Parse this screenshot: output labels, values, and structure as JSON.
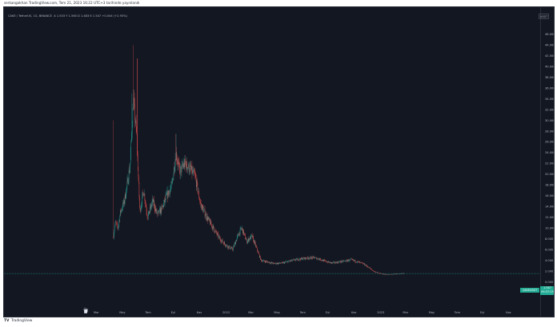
{
  "caption": "serkangokhan TradingView.com, Tem 21, 2023 16:22 UTC+3 tarihinde yayınlandı",
  "symbol_info": {
    "title": "CAKE / TetherUS, 1G, BINANCE",
    "ohlc": "A 1.503  Y 1.560  D 1.483  K 1.547  +0.044 (+2.93%)"
  },
  "currency": "USDT",
  "last_price": {
    "label": "1.547",
    "countdown": "09:37:25",
    "symbol": "CAKEUSDT",
    "color": "#22ab94"
  },
  "footer": {
    "logo": "TV",
    "brand": "TradingView"
  },
  "colors": {
    "background": "#131722",
    "up": "#26a69a",
    "down": "#ef5350",
    "grid": "#1e222d",
    "axis_text": "#b2b5be"
  },
  "chart_data": {
    "type": "candlestick",
    "symbol": "CAKE / TetherUS",
    "interval": "1G",
    "exchange": "BINANCE",
    "ylim": [
      -2,
      47
    ],
    "y_ticks": [
      "46.000",
      "44.000",
      "42.000",
      "40.000",
      "38.000",
      "36.000",
      "34.000",
      "32.000",
      "30.000",
      "28.000",
      "26.000",
      "24.000",
      "22.000",
      "20.000",
      "18.000",
      "16.000",
      "14.000",
      "12.000",
      "10.000",
      "8.000",
      "6.000",
      "4.000",
      "2.000",
      "0.000",
      "-2.000"
    ],
    "x_ticks": [
      "Mar",
      "May",
      "Tem",
      "Eyl",
      "Kas",
      "2022",
      "Mar",
      "May",
      "Tem",
      "Eyl",
      "Kas",
      "2023",
      "Mar",
      "May",
      "Tem",
      "Eyl",
      "Kas"
    ],
    "grid": false,
    "last_close": 1.547,
    "anchors": [
      {
        "month": 1.35,
        "close": 8.5
      },
      {
        "month": 1.5,
        "close": 11.0
      },
      {
        "month": 1.7,
        "close": 10.0
      },
      {
        "month": 1.9,
        "close": 13.0
      },
      {
        "month": 2.2,
        "close": 15.0
      },
      {
        "month": 2.45,
        "close": 18.5
      },
      {
        "month": 2.65,
        "close": 22.0
      },
      {
        "month": 2.9,
        "close": 34.0
      },
      {
        "month": 3.15,
        "close": 27.0
      },
      {
        "month": 3.4,
        "close": 13.0
      },
      {
        "month": 3.7,
        "close": 17.0
      },
      {
        "month": 4.0,
        "close": 12.0
      },
      {
        "month": 4.4,
        "close": 15.0
      },
      {
        "month": 4.75,
        "close": 12.5
      },
      {
        "month": 5.1,
        "close": 13.5
      },
      {
        "month": 5.5,
        "close": 16.0
      },
      {
        "month": 5.9,
        "close": 18.0
      },
      {
        "month": 6.2,
        "close": 24.0
      },
      {
        "month": 6.5,
        "close": 20.5
      },
      {
        "month": 6.9,
        "close": 22.0
      },
      {
        "month": 7.3,
        "close": 21.0
      },
      {
        "month": 7.7,
        "close": 19.5
      },
      {
        "month": 8.1,
        "close": 14.5
      },
      {
        "month": 8.6,
        "close": 12.0
      },
      {
        "month": 9.1,
        "close": 10.0
      },
      {
        "month": 9.6,
        "close": 8.0
      },
      {
        "month": 10.1,
        "close": 6.8
      },
      {
        "month": 10.6,
        "close": 6.0
      },
      {
        "month": 11.0,
        "close": 8.5
      },
      {
        "month": 11.3,
        "close": 10.0
      },
      {
        "month": 11.7,
        "close": 7.5
      },
      {
        "month": 12.1,
        "close": 8.5
      },
      {
        "month": 12.5,
        "close": 6.0
      },
      {
        "month": 12.8,
        "close": 4.0
      },
      {
        "month": 13.3,
        "close": 3.7
      },
      {
        "month": 13.8,
        "close": 3.4
      },
      {
        "month": 14.5,
        "close": 3.5
      },
      {
        "month": 15.1,
        "close": 3.9
      },
      {
        "month": 15.7,
        "close": 4.2
      },
      {
        "month": 16.3,
        "close": 4.4
      },
      {
        "month": 16.9,
        "close": 4.5
      },
      {
        "month": 17.4,
        "close": 4.2
      },
      {
        "month": 17.8,
        "close": 3.8
      },
      {
        "month": 18.3,
        "close": 3.5
      },
      {
        "month": 18.9,
        "close": 3.7
      },
      {
        "month": 19.4,
        "close": 3.9
      },
      {
        "month": 19.8,
        "close": 4.1
      },
      {
        "month": 20.3,
        "close": 3.7
      },
      {
        "month": 20.8,
        "close": 3.3
      },
      {
        "month": 21.2,
        "close": 2.6
      },
      {
        "month": 21.6,
        "close": 1.9
      },
      {
        "month": 22.1,
        "close": 1.5
      },
      {
        "month": 22.6,
        "close": 1.35
      },
      {
        "month": 23.1,
        "close": 1.4
      },
      {
        "month": 23.6,
        "close": 1.5
      },
      {
        "month": 23.95,
        "close": 1.547
      }
    ],
    "spikes": [
      {
        "month": 1.35,
        "high": 30.0
      },
      {
        "month": 2.75,
        "high": 35.0
      },
      {
        "month": 2.9,
        "high": 44.0
      },
      {
        "month": 3.2,
        "high": 41.5
      },
      {
        "month": 6.2,
        "high": 27.5
      },
      {
        "month": 11.3,
        "high": 10.5
      }
    ]
  }
}
